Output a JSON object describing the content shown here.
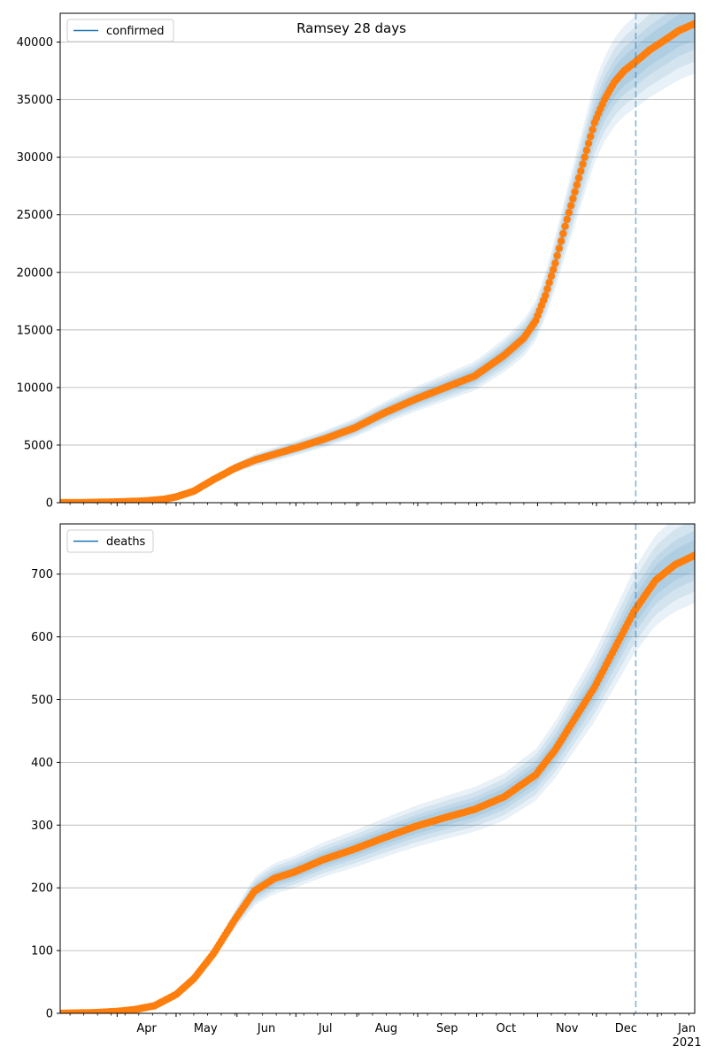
{
  "figure": {
    "title": "Ramsey 28 days"
  },
  "chart_data": [
    {
      "type": "line",
      "title": "Ramsey 28 days",
      "legend": "top-left",
      "legend_entries": [
        "confirmed"
      ],
      "grid": "y",
      "xlabel": "",
      "ylabel": "",
      "x_range": [
        "2020-03-03",
        "2021-01-20"
      ],
      "ylim": [
        0,
        42500
      ],
      "y_ticks": [
        0,
        5000,
        10000,
        15000,
        20000,
        25000,
        30000,
        35000,
        40000
      ],
      "x_tick_labels": [
        "Apr",
        "May",
        "Jun",
        "Jul",
        "Aug",
        "Sep",
        "Oct",
        "Nov",
        "Dec",
        "Jan",
        "2021"
      ],
      "forecast_start": "2020-12-21",
      "series": [
        {
          "name": "confirmed",
          "style": "model-line",
          "x": [
            "2020-03-03",
            "2020-03-15",
            "2020-03-31",
            "2020-04-15",
            "2020-04-25",
            "2020-05-01",
            "2020-05-10",
            "2020-05-20",
            "2020-05-31",
            "2020-06-10",
            "2020-06-20",
            "2020-06-30",
            "2020-07-15",
            "2020-07-31",
            "2020-08-15",
            "2020-08-31",
            "2020-09-15",
            "2020-09-30",
            "2020-10-15",
            "2020-10-25",
            "2020-10-31",
            "2020-11-05",
            "2020-11-10",
            "2020-11-15",
            "2020-11-20",
            "2020-11-25",
            "2020-11-30",
            "2020-12-05",
            "2020-12-10",
            "2020-12-15",
            "2020-12-21",
            "2020-12-28",
            "2021-01-05",
            "2021-01-12",
            "2021-01-20"
          ],
          "values": [
            0,
            10,
            60,
            150,
            300,
            500,
            1000,
            2000,
            3000,
            3700,
            4200,
            4700,
            5500,
            6500,
            7800,
            9000,
            10000,
            11000,
            12800,
            14300,
            15800,
            18000,
            20800,
            24000,
            27000,
            30000,
            33000,
            35000,
            36500,
            37500,
            38300,
            39300,
            40200,
            41000,
            41600
          ]
        },
        {
          "name": "confirmed observed",
          "style": "points",
          "x": [
            "2020-03-03",
            "2020-03-15",
            "2020-03-31",
            "2020-04-15",
            "2020-04-25",
            "2020-05-01",
            "2020-05-10",
            "2020-05-20",
            "2020-05-31",
            "2020-06-10",
            "2020-06-20",
            "2020-06-30",
            "2020-07-15",
            "2020-07-31",
            "2020-08-15",
            "2020-08-31",
            "2020-09-15",
            "2020-09-30",
            "2020-10-15",
            "2020-10-25",
            "2020-10-31",
            "2020-11-05",
            "2020-11-10",
            "2020-11-15",
            "2020-11-20",
            "2020-11-25",
            "2020-11-30",
            "2020-12-05",
            "2020-12-10",
            "2020-12-15",
            "2020-12-21",
            "2020-12-28",
            "2021-01-05",
            "2021-01-12",
            "2021-01-20"
          ],
          "values": [
            0,
            10,
            60,
            150,
            300,
            500,
            1000,
            2000,
            3000,
            3700,
            4200,
            4700,
            5500,
            6500,
            7800,
            9000,
            10000,
            11000,
            12800,
            14300,
            15800,
            18000,
            20800,
            24000,
            27000,
            30000,
            33000,
            35000,
            36500,
            37500,
            38300,
            39300,
            40200,
            41000,
            41600
          ]
        }
      ]
    },
    {
      "type": "line",
      "title": "",
      "legend": "top-left",
      "legend_entries": [
        "deaths"
      ],
      "grid": "y",
      "xlabel": "",
      "ylabel": "",
      "x_range": [
        "2020-03-03",
        "2021-01-20"
      ],
      "ylim": [
        0,
        780
      ],
      "y_ticks": [
        0,
        100,
        200,
        300,
        400,
        500,
        600,
        700
      ],
      "x_tick_labels": [
        "Apr",
        "May",
        "Jun",
        "Jul",
        "Aug",
        "Sep",
        "Oct",
        "Nov",
        "Dec",
        "Jan",
        "2021"
      ],
      "forecast_start": "2020-12-21",
      "series": [
        {
          "name": "deaths",
          "style": "model-line",
          "x": [
            "2020-03-03",
            "2020-03-20",
            "2020-04-01",
            "2020-04-10",
            "2020-04-20",
            "2020-05-01",
            "2020-05-10",
            "2020-05-20",
            "2020-05-31",
            "2020-06-10",
            "2020-06-20",
            "2020-06-30",
            "2020-07-15",
            "2020-07-31",
            "2020-08-15",
            "2020-08-31",
            "2020-09-15",
            "2020-09-30",
            "2020-10-15",
            "2020-10-31",
            "2020-11-10",
            "2020-11-20",
            "2020-11-30",
            "2020-12-10",
            "2020-12-20",
            "2020-12-31",
            "2021-01-10",
            "2021-01-20"
          ],
          "values": [
            0,
            1,
            3,
            6,
            12,
            30,
            55,
            95,
            150,
            195,
            215,
            225,
            245,
            262,
            280,
            298,
            312,
            325,
            345,
            380,
            420,
            470,
            520,
            580,
            640,
            690,
            715,
            730
          ]
        },
        {
          "name": "deaths observed",
          "style": "points",
          "x": [
            "2020-03-03",
            "2020-03-20",
            "2020-04-01",
            "2020-04-10",
            "2020-04-20",
            "2020-05-01",
            "2020-05-10",
            "2020-05-20",
            "2020-05-31",
            "2020-06-10",
            "2020-06-20",
            "2020-06-30",
            "2020-07-15",
            "2020-07-31",
            "2020-08-15",
            "2020-08-31",
            "2020-09-15",
            "2020-09-30",
            "2020-10-15",
            "2020-10-31",
            "2020-11-10",
            "2020-11-20",
            "2020-11-30",
            "2020-12-10",
            "2020-12-20",
            "2020-12-31",
            "2021-01-10",
            "2021-01-20"
          ],
          "values": [
            0,
            1,
            3,
            6,
            12,
            30,
            55,
            95,
            150,
            195,
            215,
            225,
            245,
            262,
            280,
            298,
            312,
            325,
            345,
            380,
            420,
            470,
            520,
            580,
            640,
            690,
            715,
            730
          ]
        }
      ]
    }
  ],
  "colors": {
    "model_line": "#1f77b4",
    "points": "#ff7f0e",
    "band": "#1f77b4",
    "forecast_line": "#1f77b4",
    "grid": "#b0b0b0",
    "axis": "#000000"
  }
}
